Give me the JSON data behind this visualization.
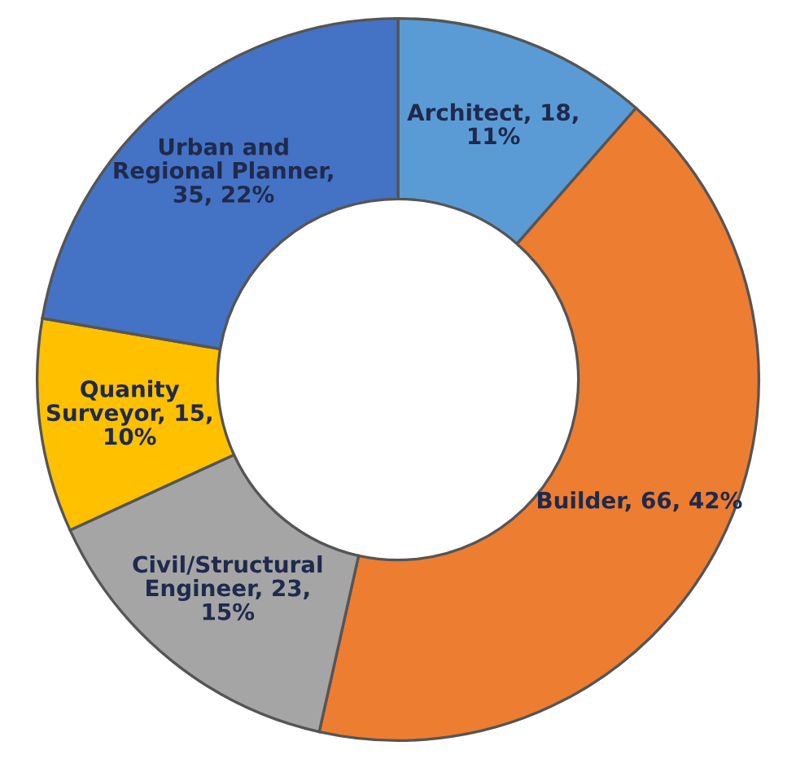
{
  "chart_data": {
    "type": "donut",
    "categories": [
      "Architect",
      "Builder",
      "Civil/Structural\nEngineer",
      "Quanity\nSurveyor",
      "Urban and\nRegional Planner"
    ],
    "values": [
      18,
      66,
      23,
      15,
      35
    ],
    "value_labels": [
      ", 18,\n11%",
      ", 66, 42%",
      ", 23,\n15%",
      ", 15,\n10%",
      ",\n35, 22%"
    ],
    "colors": [
      "#5b9bd5",
      "#ed7d31",
      "#a5a5a5",
      "#ffc000",
      "#4472c4"
    ],
    "legend": false
  }
}
